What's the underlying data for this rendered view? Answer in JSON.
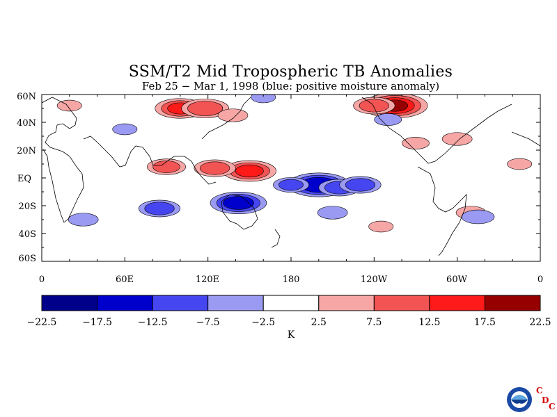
{
  "title": "SSM/T2 Mid Tropospheric TB Anomalies",
  "subtitle": "Feb 25 − Mar 1, 1998 (blue: positive moisture anomaly)",
  "lat_labels": [
    "60N",
    "40N",
    "20N",
    "EQ",
    "20S",
    "40S",
    "60S"
  ],
  "lon_labels": [
    "0",
    "60E",
    "120E",
    "180",
    "120W",
    "60W",
    "0"
  ],
  "colorbar": {
    "ticks": [
      "−22.5",
      "−17.5",
      "−12.5",
      "−7.5",
      "−2.5",
      "2.5",
      "7.5",
      "12.5",
      "17.5",
      "22.5"
    ],
    "colors": [
      "#00008b",
      "#0000cd",
      "#4646f0",
      "#9a9af3",
      "#ffffff",
      "#f7a6a6",
      "#f25454",
      "#ff1a1a",
      "#960000"
    ],
    "unit": "K"
  },
  "logo": {
    "letters": [
      "C",
      "D",
      "C"
    ],
    "agency": "NOAA"
  },
  "chart_data": {
    "type": "heatmap",
    "title": "SSM/T2 Mid Tropospheric TB Anomalies",
    "subtitle": "Feb 25 − Mar 1, 1998 (blue: positive moisture anomaly)",
    "x_range": [
      0,
      360
    ],
    "y_range": [
      -60,
      60
    ],
    "contour_levels": [
      -22.5,
      -17.5,
      -12.5,
      -7.5,
      -2.5,
      2.5,
      7.5,
      12.5,
      17.5,
      22.5
    ],
    "unit": "K",
    "anomaly_features": [
      {
        "lon": 150,
        "lat": 5,
        "value": 14
      },
      {
        "lon": 125,
        "lat": 7,
        "value": 10
      },
      {
        "lon": 90,
        "lat": 8,
        "value": 9
      },
      {
        "lon": 100,
        "lat": 50,
        "value": 13
      },
      {
        "lon": 118,
        "lat": 50,
        "value": 12
      },
      {
        "lon": 138,
        "lat": 45,
        "value": 6
      },
      {
        "lon": 255,
        "lat": 52,
        "value": 18
      },
      {
        "lon": 240,
        "lat": 52,
        "value": 10
      },
      {
        "lon": 300,
        "lat": 28,
        "value": 6
      },
      {
        "lon": 270,
        "lat": 25,
        "value": 5
      },
      {
        "lon": 310,
        "lat": -25,
        "value": 6
      },
      {
        "lon": 20,
        "lat": 52,
        "value": 4
      },
      {
        "lon": 345,
        "lat": 10,
        "value": 4
      },
      {
        "lon": 200,
        "lat": -5,
        "value": -17
      },
      {
        "lon": 215,
        "lat": -7,
        "value": -10
      },
      {
        "lon": 230,
        "lat": -5,
        "value": -10
      },
      {
        "lon": 180,
        "lat": -5,
        "value": -8
      },
      {
        "lon": 142,
        "lat": -18,
        "value": -15
      },
      {
        "lon": 85,
        "lat": -22,
        "value": -10
      },
      {
        "lon": 315,
        "lat": -28,
        "value": -7
      },
      {
        "lon": 250,
        "lat": 42,
        "value": -5
      },
      {
        "lon": 60,
        "lat": 35,
        "value": -4
      },
      {
        "lon": 30,
        "lat": -30,
        "value": -6
      },
      {
        "lon": 160,
        "lat": 58,
        "value": -4
      },
      {
        "lon": 210,
        "lat": -25,
        "value": -6
      },
      {
        "lon": 245,
        "lat": -35,
        "value": 4
      }
    ]
  }
}
